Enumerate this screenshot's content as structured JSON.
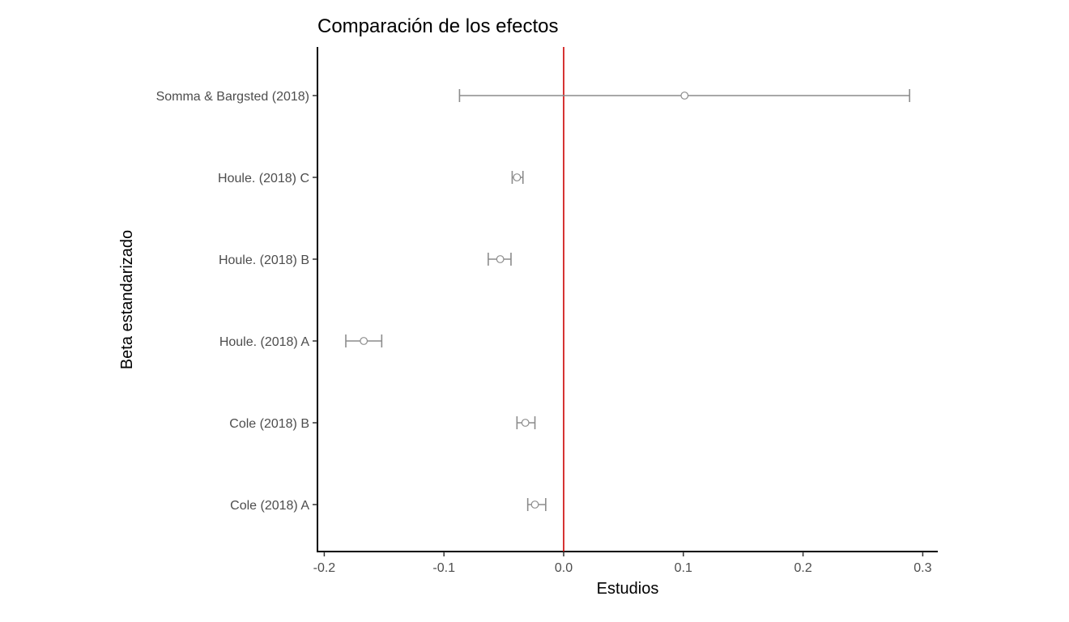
{
  "chart_data": {
    "type": "scatter",
    "subtype": "forest-plot-with-error-bars",
    "title": "Comparación de los efectos",
    "xlabel": "Estudios",
    "ylabel": "Beta estandarizado",
    "xlim": [
      -0.205,
      0.312
    ],
    "xticks": [
      -0.2,
      -0.1,
      0.0,
      0.1,
      0.2,
      0.3
    ],
    "xtick_labels": [
      "-0.2",
      "-0.1",
      "0.0",
      "0.1",
      "0.2",
      "0.3"
    ],
    "categories": [
      "Cole (2018) A",
      "Cole (2018) B",
      "Houle. (2018) A",
      "Houle. (2018) B",
      "Houle. (2018) C",
      "Somma & Bargsted (2018)"
    ],
    "estimates": [
      -0.024,
      -0.032,
      -0.167,
      -0.053,
      -0.039,
      0.101
    ],
    "lower": [
      -0.03,
      -0.039,
      -0.182,
      -0.063,
      -0.043,
      -0.087
    ],
    "upper": [
      -0.015,
      -0.024,
      -0.152,
      -0.044,
      -0.034,
      0.289
    ],
    "reference_line": {
      "x": 0.0,
      "color": "#cc0000"
    },
    "point_color": "#8c8c8c",
    "grid": false,
    "legend": "none"
  }
}
